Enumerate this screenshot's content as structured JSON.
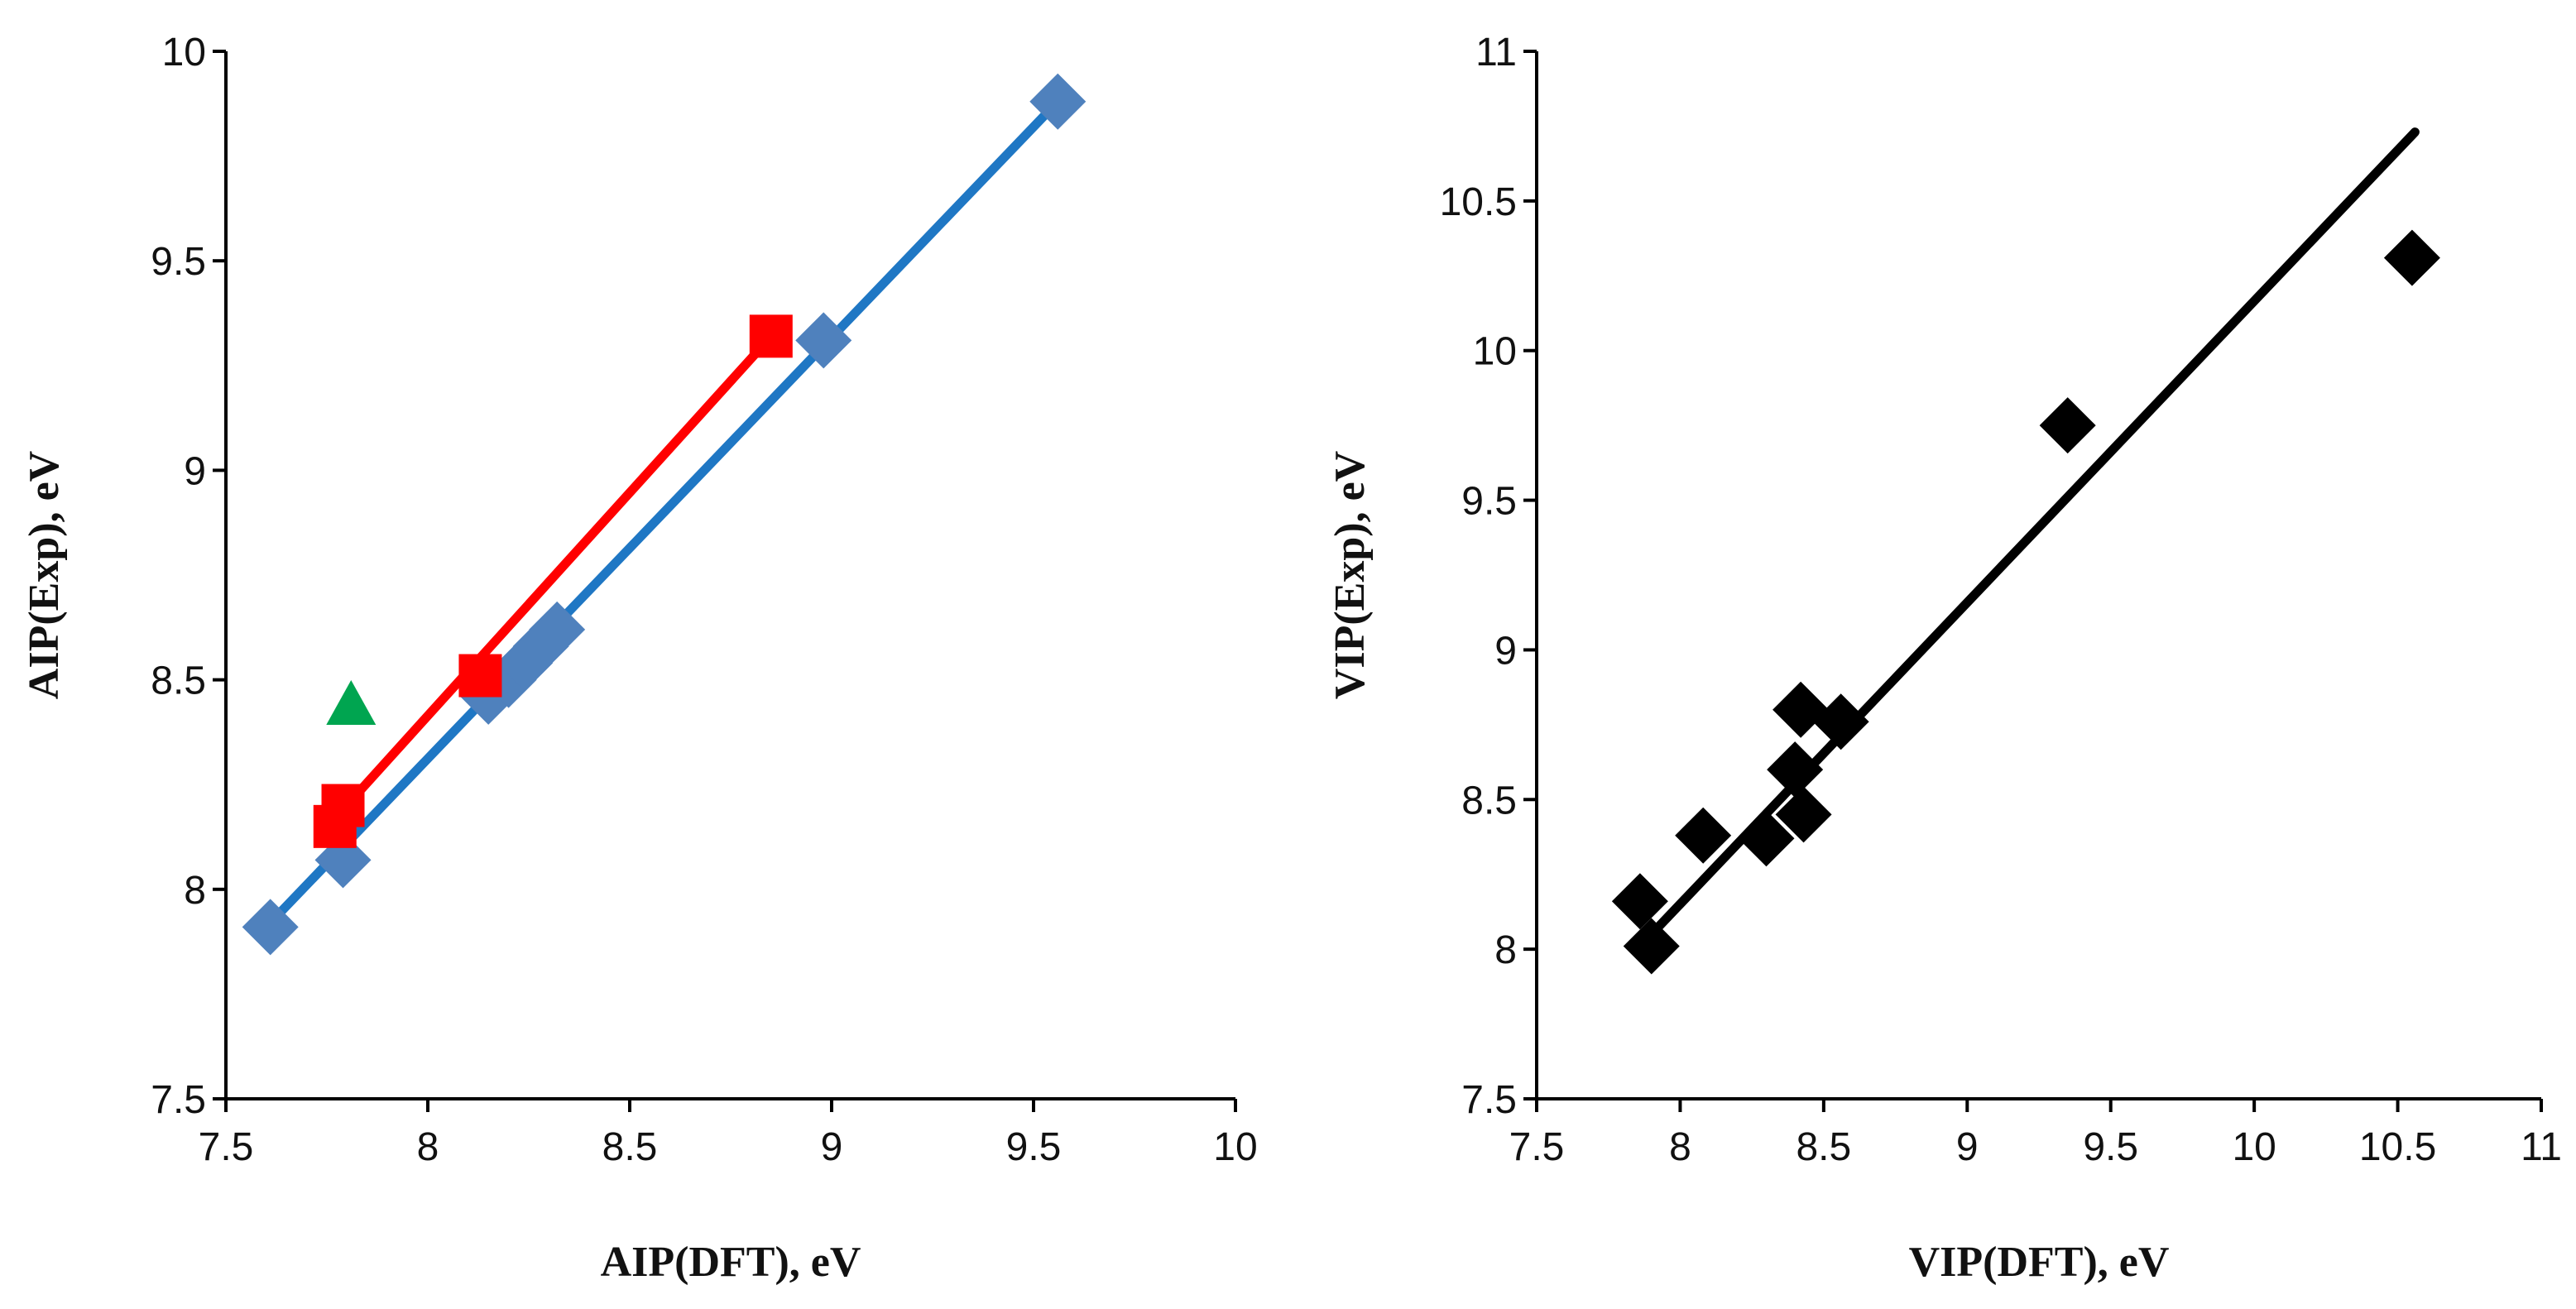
{
  "chart_data": [
    {
      "type": "scatter",
      "xlabel": "AIP(DFT), eV",
      "ylabel": "AIP(Exp), eV",
      "xlim": [
        7.5,
        10
      ],
      "ylim": [
        7.5,
        10
      ],
      "xticks": [
        "7.5",
        "8",
        "8.5",
        "9",
        "9.5",
        "10"
      ],
      "yticks": [
        "7.5",
        "8",
        "8.5",
        "9",
        "9.5",
        "10"
      ],
      "grid": false,
      "legend": "none",
      "series": [
        {
          "name": "blue diamonds",
          "marker": "diamond",
          "color": "#4F81BD",
          "line_color": "#1F77C4",
          "x": [
            7.61,
            7.79,
            8.15,
            8.2,
            8.24,
            8.28,
            8.32,
            8.98,
            9.56
          ],
          "y": [
            7.91,
            8.07,
            8.46,
            8.5,
            8.54,
            8.58,
            8.62,
            9.31,
            9.88
          ],
          "trendline": {
            "x": [
              7.6,
              9.57
            ],
            "y": [
              7.91,
              9.89
            ]
          }
        },
        {
          "name": "red squares",
          "marker": "square",
          "color": "#FF0000",
          "line_color": "#FF0000",
          "x": [
            7.77,
            7.79,
            8.13,
            8.85
          ],
          "y": [
            8.15,
            8.2,
            8.51,
            9.32
          ],
          "trendline": {
            "x": [
              7.78,
              8.86
            ],
            "y": [
              8.18,
              9.33
            ]
          }
        },
        {
          "name": "green triangle",
          "marker": "triangle",
          "color": "#00A550",
          "x": [
            7.81
          ],
          "y": [
            8.44
          ]
        }
      ]
    },
    {
      "type": "scatter",
      "xlabel": "VIP(DFT), eV",
      "ylabel": "VIP(Exp), eV",
      "xlim": [
        7.5,
        11
      ],
      "ylim": [
        7.5,
        11
      ],
      "xticks": [
        "7.5",
        "8",
        "8.5",
        "9",
        "9.5",
        "10",
        "10.5",
        "11"
      ],
      "yticks": [
        "7.5",
        "8",
        "8.5",
        "9",
        "9.5",
        "10",
        "10.5",
        "11"
      ],
      "grid": false,
      "legend": "none",
      "series": [
        {
          "name": "black diamonds",
          "marker": "diamond",
          "color": "#000000",
          "line_color": "#000000",
          "x": [
            7.86,
            7.9,
            8.08,
            8.3,
            8.4,
            8.42,
            8.43,
            8.56,
            9.35,
            10.55
          ],
          "y": [
            8.16,
            8.01,
            8.38,
            8.37,
            8.6,
            8.8,
            8.45,
            8.76,
            9.75,
            10.31
          ],
          "trendline": {
            "x": [
              7.9,
              10.56
            ],
            "y": [
              8.05,
              10.73
            ]
          }
        }
      ]
    }
  ]
}
